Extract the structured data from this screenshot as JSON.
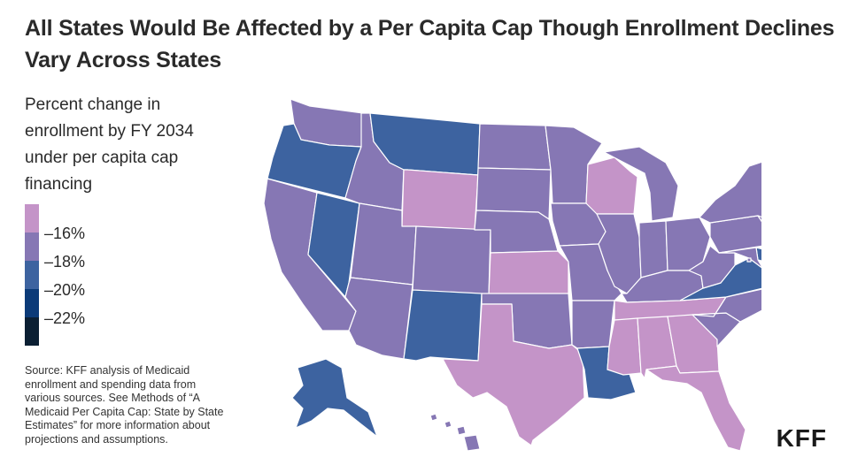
{
  "title": "All States Would Be Affected by a Per Capita Cap Though Enrollment Declines Vary Across States",
  "legend": {
    "title": "Percent change in enrollment by FY 2034 under per capita cap financing",
    "bins": [
      {
        "color": "#c494c8"
      },
      {
        "color": "#8677b4"
      },
      {
        "color": "#3d63a0"
      },
      {
        "color": "#0b3a78"
      },
      {
        "color": "#0b1f33"
      }
    ],
    "ticks": [
      "–16%",
      "–18%",
      "–20%",
      "–22%"
    ]
  },
  "source": "Source: KFF analysis of Medicaid enrollment and spending data from various sources. See Methods of “A Medicaid Per Capita Cap: State by State Estimates” for more information about projections and assumptions.",
  "logo": "KFF",
  "colors": {
    "pink": "#c494c8",
    "purple": "#8677b4",
    "blue": "#3d63a0",
    "navy": "#0b3a78",
    "dark": "#0b1f33"
  },
  "states": [
    {
      "name": "WA",
      "bin": "purple"
    },
    {
      "name": "OR",
      "bin": "blue"
    },
    {
      "name": "CA",
      "bin": "purple"
    },
    {
      "name": "NV",
      "bin": "blue"
    },
    {
      "name": "ID",
      "bin": "purple"
    },
    {
      "name": "MT",
      "bin": "blue"
    },
    {
      "name": "WY",
      "bin": "pink"
    },
    {
      "name": "UT",
      "bin": "purple"
    },
    {
      "name": "AZ",
      "bin": "purple"
    },
    {
      "name": "CO",
      "bin": "purple"
    },
    {
      "name": "NM",
      "bin": "blue"
    },
    {
      "name": "ND",
      "bin": "purple"
    },
    {
      "name": "SD",
      "bin": "purple"
    },
    {
      "name": "NE",
      "bin": "purple"
    },
    {
      "name": "KS",
      "bin": "pink"
    },
    {
      "name": "OK",
      "bin": "purple"
    },
    {
      "name": "TX",
      "bin": "pink"
    },
    {
      "name": "MN",
      "bin": "purple"
    },
    {
      "name": "IA",
      "bin": "purple"
    },
    {
      "name": "MO",
      "bin": "purple"
    },
    {
      "name": "AR",
      "bin": "purple"
    },
    {
      "name": "LA",
      "bin": "blue"
    },
    {
      "name": "WI",
      "bin": "pink"
    },
    {
      "name": "IL",
      "bin": "purple"
    },
    {
      "name": "MI",
      "bin": "purple"
    },
    {
      "name": "IN",
      "bin": "purple"
    },
    {
      "name": "OH",
      "bin": "purple"
    },
    {
      "name": "KY",
      "bin": "purple"
    },
    {
      "name": "TN",
      "bin": "pink"
    },
    {
      "name": "MS",
      "bin": "pink"
    },
    {
      "name": "AL",
      "bin": "pink"
    },
    {
      "name": "GA",
      "bin": "pink"
    },
    {
      "name": "FL",
      "bin": "pink"
    },
    {
      "name": "SC",
      "bin": "purple"
    },
    {
      "name": "NC",
      "bin": "purple"
    },
    {
      "name": "VA",
      "bin": "blue"
    },
    {
      "name": "WV",
      "bin": "purple"
    },
    {
      "name": "PA",
      "bin": "purple"
    },
    {
      "name": "NY",
      "bin": "purple"
    },
    {
      "name": "VT",
      "bin": "purple"
    },
    {
      "name": "NH",
      "bin": "purple"
    },
    {
      "name": "ME",
      "bin": "purple"
    },
    {
      "name": "MA",
      "bin": "purple"
    },
    {
      "name": "RI",
      "bin": "purple"
    },
    {
      "name": "CT",
      "bin": "purple"
    },
    {
      "name": "NJ",
      "bin": "purple"
    },
    {
      "name": "DE",
      "bin": "blue"
    },
    {
      "name": "MD",
      "bin": "purple"
    },
    {
      "name": "DC",
      "bin": "purple"
    },
    {
      "name": "AK",
      "bin": "blue"
    },
    {
      "name": "HI",
      "bin": "purple"
    }
  ]
}
